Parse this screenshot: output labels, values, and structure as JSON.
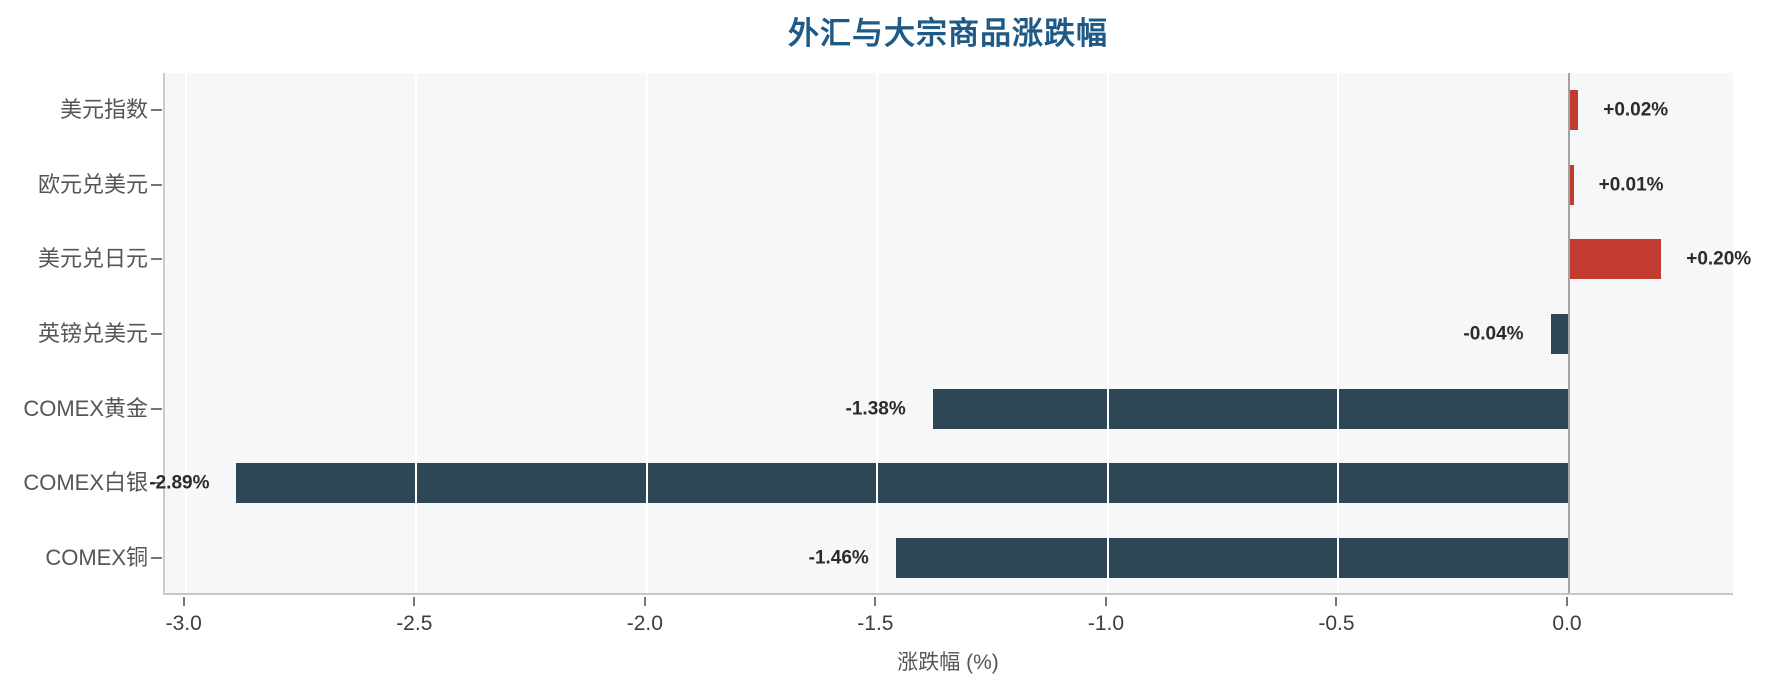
{
  "title": "外汇与大宗商品涨跌幅",
  "chart_data": {
    "type": "bar",
    "orientation": "horizontal",
    "title": "外汇与大宗商品涨跌幅",
    "xlabel": "涨跌幅 (%)",
    "categories": [
      "美元指数",
      "欧元兑美元",
      "美元兑日元",
      "英镑兑美元",
      "COMEX黄金",
      "COMEX白银",
      "COMEX铜"
    ],
    "values": [
      0.02,
      0.01,
      0.2,
      -0.04,
      -1.38,
      -2.89,
      -1.46
    ],
    "value_labels": [
      "+0.02%",
      "+0.01%",
      "+0.20%",
      "-0.04%",
      "-1.38%",
      "-2.89%",
      "-1.46%"
    ],
    "xlim": [
      -3.045,
      0.36
    ],
    "xticks": [
      -3.0,
      -2.5,
      -2.0,
      -1.5,
      -1.0,
      -0.5,
      0.0
    ],
    "xtick_labels": [
      "-3.0",
      "-2.5",
      "-2.0",
      "-1.5",
      "-1.0",
      "-0.5",
      "0.0"
    ],
    "grid": true,
    "legend": "none",
    "colors": {
      "positive_bar": "#c23a30",
      "negative_bar": "#2e4756",
      "title": "#1e5a85",
      "plot_background": "#f6f7f9",
      "gridline": "#ffffff",
      "zero_line": "#a3a3a3",
      "value_label": "#2b2b2b",
      "tick_label": "#3d3d3d",
      "category_label": "#555555"
    }
  }
}
